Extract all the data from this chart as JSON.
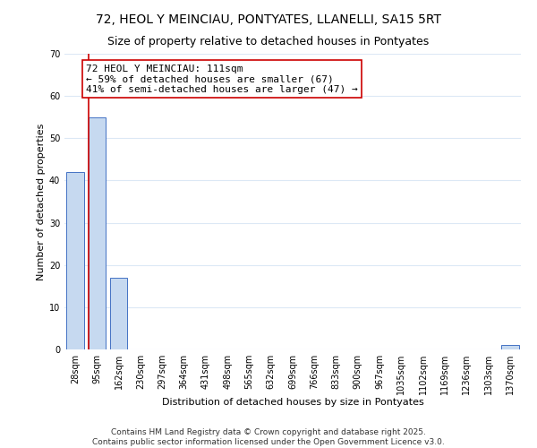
{
  "title": "72, HEOL Y MEINCIAU, PONTYATES, LLANELLI, SA15 5RT",
  "subtitle": "Size of property relative to detached houses in Pontyates",
  "xlabel": "Distribution of detached houses by size in Pontyates",
  "ylabel": "Number of detached properties",
  "bar_labels": [
    "28sqm",
    "95sqm",
    "162sqm",
    "230sqm",
    "297sqm",
    "364sqm",
    "431sqm",
    "498sqm",
    "565sqm",
    "632sqm",
    "699sqm",
    "766sqm",
    "833sqm",
    "900sqm",
    "967sqm",
    "1035sqm",
    "1102sqm",
    "1169sqm",
    "1236sqm",
    "1303sqm",
    "1370sqm"
  ],
  "bar_values": [
    42,
    55,
    17,
    0,
    0,
    0,
    0,
    0,
    0,
    0,
    0,
    0,
    0,
    0,
    0,
    0,
    0,
    0,
    0,
    0,
    1
  ],
  "bar_color": "#c6d9f0",
  "bar_edge_color": "#4472c4",
  "highlight_bar_index": 1,
  "highlight_line_color": "#cc0000",
  "annotation_line1": "72 HEOL Y MEINCIAU: 111sqm",
  "annotation_line2": "← 59% of detached houses are smaller (67)",
  "annotation_line3": "41% of semi-detached houses are larger (47) →",
  "annotation_box_color": "#ffffff",
  "annotation_box_edge": "#cc0000",
  "ylim": [
    0,
    70
  ],
  "yticks": [
    0,
    10,
    20,
    30,
    40,
    50,
    60,
    70
  ],
  "footer_line1": "Contains HM Land Registry data © Crown copyright and database right 2025.",
  "footer_line2": "Contains public sector information licensed under the Open Government Licence v3.0.",
  "background_color": "#ffffff",
  "grid_color": "#dce8f5",
  "title_fontsize": 10,
  "subtitle_fontsize": 9,
  "axis_label_fontsize": 8,
  "tick_fontsize": 7,
  "annotation_fontsize": 8,
  "footer_fontsize": 6.5
}
